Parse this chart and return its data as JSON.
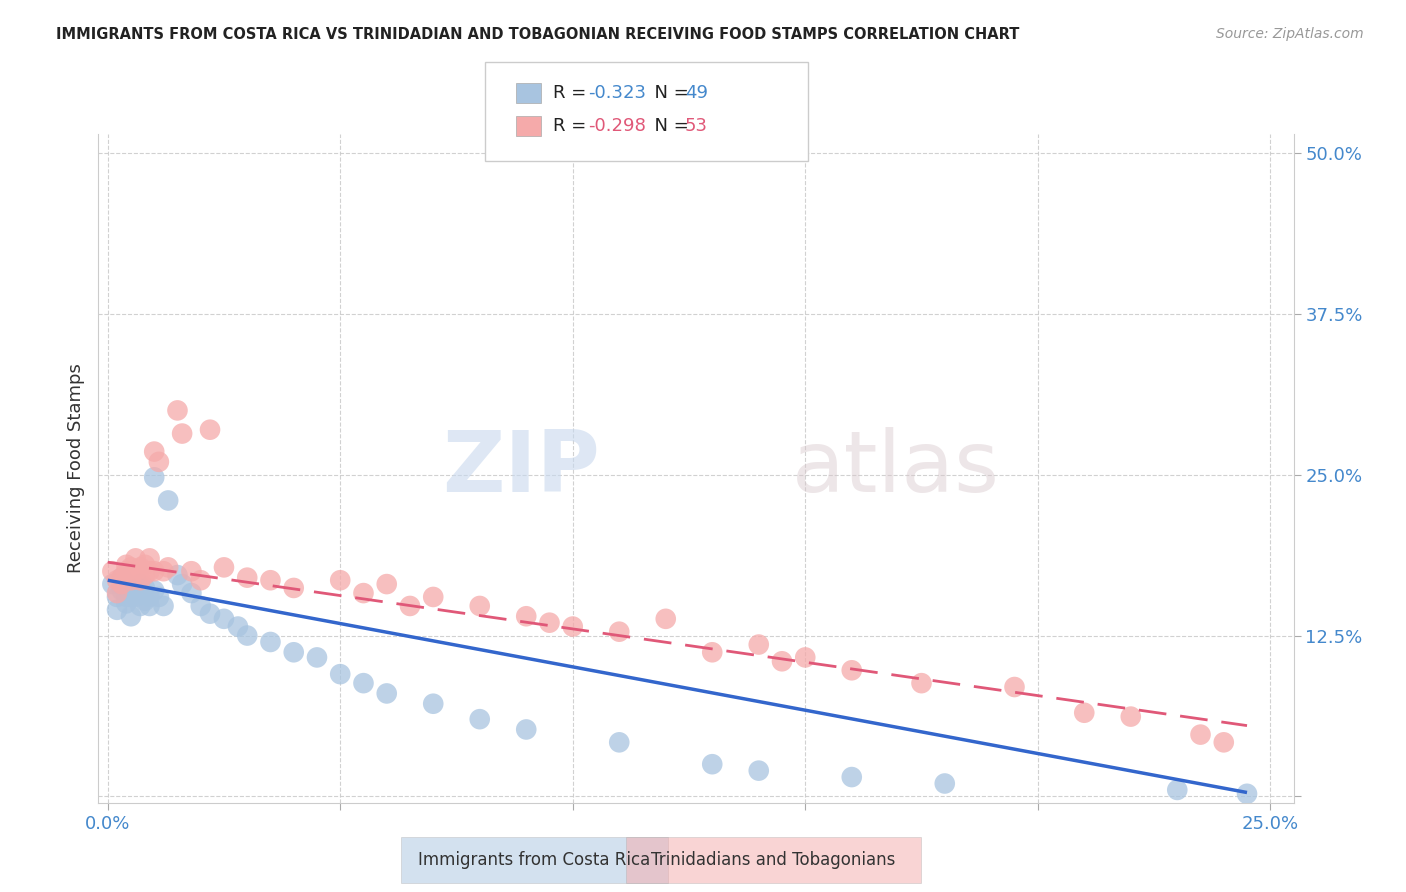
{
  "title": "IMMIGRANTS FROM COSTA RICA VS TRINIDADIAN AND TOBAGONIAN RECEIVING FOOD STAMPS CORRELATION CHART",
  "source": "Source: ZipAtlas.com",
  "ylabel": "Receiving Food Stamps",
  "xlabel": "",
  "xlim": [
    -0.002,
    0.255
  ],
  "ylim": [
    -0.005,
    0.515
  ],
  "xticks": [
    0.0,
    0.05,
    0.1,
    0.15,
    0.2,
    0.25
  ],
  "xticklabels": [
    "0.0%",
    "",
    "",
    "",
    "",
    "25.0%"
  ],
  "yticks": [
    0.0,
    0.125,
    0.25,
    0.375,
    0.5
  ],
  "yticklabels": [
    "",
    "12.5%",
    "25.0%",
    "37.5%",
    "50.0%"
  ],
  "blue_R": -0.323,
  "blue_N": 49,
  "pink_R": -0.298,
  "pink_N": 53,
  "blue_color": "#a8c4e0",
  "pink_color": "#f5aaaa",
  "blue_line_color": "#3366cc",
  "pink_line_color": "#e05878",
  "legend_label_blue": "Immigrants from Costa Rica",
  "legend_label_pink": "Trinidadians and Tobagonians",
  "watermark_zip": "ZIP",
  "watermark_atlas": "atlas",
  "blue_scatter_x": [
    0.001,
    0.002,
    0.002,
    0.003,
    0.003,
    0.004,
    0.004,
    0.004,
    0.005,
    0.005,
    0.005,
    0.006,
    0.006,
    0.007,
    0.007,
    0.007,
    0.008,
    0.008,
    0.009,
    0.009,
    0.01,
    0.01,
    0.011,
    0.012,
    0.013,
    0.015,
    0.016,
    0.018,
    0.02,
    0.022,
    0.025,
    0.028,
    0.03,
    0.035,
    0.04,
    0.045,
    0.05,
    0.055,
    0.06,
    0.07,
    0.08,
    0.09,
    0.11,
    0.13,
    0.14,
    0.16,
    0.18,
    0.23,
    0.245
  ],
  "blue_scatter_y": [
    0.165,
    0.155,
    0.145,
    0.16,
    0.17,
    0.155,
    0.165,
    0.15,
    0.16,
    0.155,
    0.14,
    0.155,
    0.162,
    0.148,
    0.158,
    0.165,
    0.152,
    0.162,
    0.155,
    0.148,
    0.16,
    0.248,
    0.155,
    0.148,
    0.23,
    0.172,
    0.165,
    0.158,
    0.148,
    0.142,
    0.138,
    0.132,
    0.125,
    0.12,
    0.112,
    0.108,
    0.095,
    0.088,
    0.08,
    0.072,
    0.06,
    0.052,
    0.042,
    0.025,
    0.02,
    0.015,
    0.01,
    0.005,
    0.002
  ],
  "pink_scatter_x": [
    0.001,
    0.002,
    0.002,
    0.003,
    0.003,
    0.004,
    0.004,
    0.005,
    0.005,
    0.006,
    0.006,
    0.007,
    0.007,
    0.008,
    0.008,
    0.009,
    0.009,
    0.01,
    0.01,
    0.011,
    0.012,
    0.013,
    0.015,
    0.016,
    0.018,
    0.02,
    0.022,
    0.025,
    0.03,
    0.035,
    0.04,
    0.05,
    0.055,
    0.06,
    0.065,
    0.07,
    0.08,
    0.09,
    0.1,
    0.11,
    0.12,
    0.13,
    0.14,
    0.15,
    0.16,
    0.175,
    0.195,
    0.21,
    0.22,
    0.235,
    0.24,
    0.095,
    0.145
  ],
  "pink_scatter_y": [
    0.175,
    0.168,
    0.158,
    0.165,
    0.17,
    0.175,
    0.18,
    0.168,
    0.178,
    0.185,
    0.175,
    0.168,
    0.178,
    0.172,
    0.18,
    0.175,
    0.185,
    0.175,
    0.268,
    0.26,
    0.175,
    0.178,
    0.3,
    0.282,
    0.175,
    0.168,
    0.285,
    0.178,
    0.17,
    0.168,
    0.162,
    0.168,
    0.158,
    0.165,
    0.148,
    0.155,
    0.148,
    0.14,
    0.132,
    0.128,
    0.138,
    0.112,
    0.118,
    0.108,
    0.098,
    0.088,
    0.085,
    0.065,
    0.062,
    0.048,
    0.042,
    0.135,
    0.105
  ],
  "blue_line_x0": 0.0,
  "blue_line_x1": 0.245,
  "blue_line_y0": 0.168,
  "blue_line_y1": 0.003,
  "pink_line_x0": 0.0,
  "pink_line_x1": 0.245,
  "pink_line_y0": 0.182,
  "pink_line_y1": 0.055
}
